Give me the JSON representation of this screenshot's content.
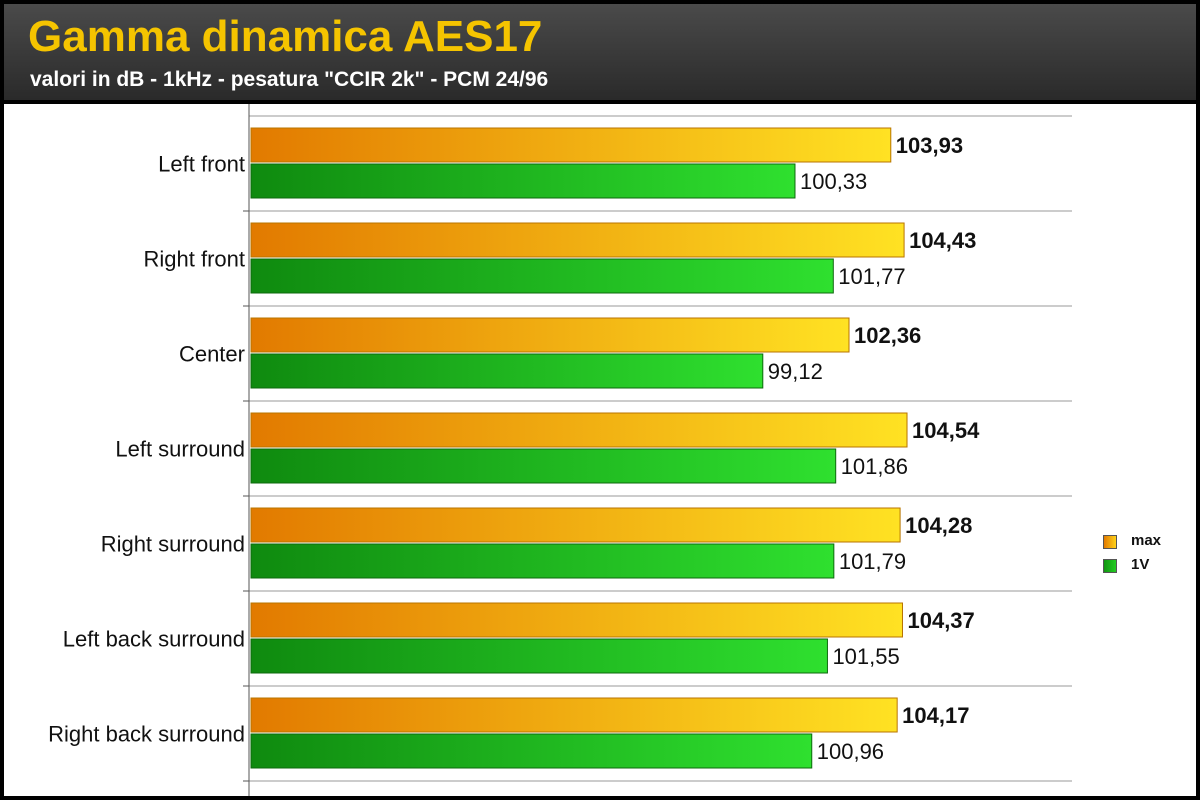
{
  "header": {
    "title": "Gamma dinamica AES17",
    "subtitle": "valori in dB - 1kHz - pesatura \"CCIR 2k\" - PCM 24/96"
  },
  "legend": {
    "items": [
      "max",
      "1V"
    ]
  },
  "colors": {
    "max_start": "#e27a00",
    "max_end": "#ffe223",
    "v1_start": "#0f8a0f",
    "v1_end": "#2fe02f",
    "title": "#f5c400"
  },
  "chart_data": {
    "type": "bar",
    "orientation": "horizontal",
    "categories": [
      "Left front",
      "Right front",
      "Center",
      "Left surround",
      "Right surround",
      "Left back surround",
      "Right back surround"
    ],
    "series": [
      {
        "name": "max",
        "values": [
          103.93,
          104.43,
          102.36,
          104.54,
          104.28,
          104.37,
          104.17
        ],
        "labels": [
          "103,93",
          "104,43",
          "102,36",
          "104,54",
          "104,28",
          "104,37",
          "104,17"
        ]
      },
      {
        "name": "1V",
        "values": [
          100.33,
          101.77,
          99.12,
          101.86,
          101.79,
          101.55,
          100.96
        ],
        "labels": [
          "100,33",
          "101,77",
          "99,12",
          "101,86",
          "101,79",
          "101,55",
          "100,96"
        ]
      }
    ],
    "title": "Gamma dinamica AES17",
    "subtitle": "valori in dB - 1kHz - pesatura \"CCIR 2k\" - PCM 24/96",
    "xlim": [
      80,
      110
    ],
    "grid": true,
    "legend_position": "right"
  }
}
